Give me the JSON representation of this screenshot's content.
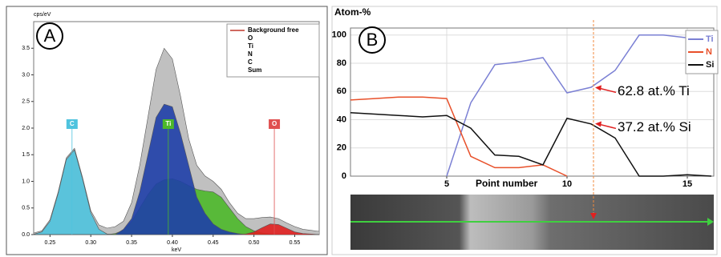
{
  "chart_data": [
    {
      "type": "area",
      "panel": "A",
      "x_label": "keV",
      "y_label": "cps/eV",
      "x": [
        0.23,
        0.24,
        0.25,
        0.26,
        0.27,
        0.28,
        0.29,
        0.3,
        0.31,
        0.32,
        0.33,
        0.34,
        0.35,
        0.36,
        0.37,
        0.38,
        0.39,
        0.4,
        0.41,
        0.42,
        0.43,
        0.44,
        0.45,
        0.46,
        0.47,
        0.48,
        0.49,
        0.5,
        0.51,
        0.52,
        0.53,
        0.54,
        0.55,
        0.56,
        0.57,
        0.58
      ],
      "series": [
        {
          "name": "Background free",
          "color": "#c0392b"
        },
        {
          "name": "O",
          "color": "#e02020",
          "values": [
            0,
            0,
            0,
            0,
            0,
            0,
            0,
            0,
            0,
            0,
            0,
            0,
            0,
            0,
            0,
            0,
            0,
            0,
            0,
            0,
            0,
            0,
            0,
            0,
            0,
            0,
            0.01,
            0.05,
            0.13,
            0.2,
            0.19,
            0.12,
            0.05,
            0.02,
            0.01,
            0
          ]
        },
        {
          "name": "Ti",
          "color": "#1f3fa8",
          "values": [
            0,
            0,
            0,
            0,
            0,
            0,
            0,
            0,
            0,
            0,
            0,
            0.1,
            0.3,
            0.8,
            1.5,
            2.2,
            2.45,
            2.4,
            1.9,
            1.3,
            0.7,
            0.4,
            0.2,
            0.1,
            0.05,
            0.02,
            0,
            0,
            0,
            0,
            0,
            0,
            0,
            0,
            0,
            0
          ]
        },
        {
          "name": "N",
          "color": "#4cb82a",
          "values": [
            0,
            0,
            0,
            0,
            0,
            0,
            0,
            0,
            0,
            0,
            0.02,
            0.08,
            0.25,
            0.5,
            0.75,
            0.95,
            1.03,
            1.05,
            1.0,
            0.92,
            0.85,
            0.82,
            0.8,
            0.7,
            0.5,
            0.3,
            0.15,
            0.07,
            0.03,
            0.01,
            0,
            0,
            0,
            0,
            0,
            0
          ]
        },
        {
          "name": "C",
          "color": "#4fc3de",
          "values": [
            0.006,
            0.049,
            0.25,
            0.77,
            1.41,
            1.59,
            1.04,
            0.41,
            0.1,
            0.01,
            0,
            0,
            0,
            0,
            0,
            0,
            0,
            0,
            0,
            0,
            0,
            0,
            0,
            0,
            0,
            0,
            0,
            0,
            0,
            0,
            0,
            0,
            0,
            0,
            0,
            0
          ]
        },
        {
          "name": "Sum",
          "color": "#b9b9b9",
          "values": [
            0.03,
            0.07,
            0.28,
            0.8,
            1.44,
            1.62,
            1.07,
            0.45,
            0.18,
            0.12,
            0.15,
            0.25,
            0.6,
            1.3,
            2.2,
            3.1,
            3.5,
            3.3,
            2.6,
            1.8,
            1.3,
            1.1,
            1.0,
            0.85,
            0.6,
            0.4,
            0.3,
            0.3,
            0.32,
            0.33,
            0.3,
            0.22,
            0.15,
            0.1,
            0.08,
            0.06
          ]
        }
      ],
      "annotations": [
        {
          "text": "C",
          "x": 0.277,
          "color": "#4fc3de"
        },
        {
          "text": "Ti",
          "x": 0.395,
          "color": "#4cb82a"
        },
        {
          "text": "O",
          "x": 0.525,
          "color": "#e05050"
        }
      ],
      "xlim": [
        0.23,
        0.58
      ],
      "ylim": [
        0,
        4
      ],
      "xticks": [
        0.25,
        {
          "value": 0.3,
          "label": "0.30"
        },
        0.35,
        {
          "value": 0.4,
          "label": "0.40"
        },
        0.45,
        {
          "value": 0.5,
          "label": "0.50"
        },
        0.55
      ],
      "yticks": [
        {
          "value": 0,
          "label": "0.0"
        },
        {
          "value": 0.5,
          "label": "0.5"
        },
        {
          "value": 1,
          "label": "1.0"
        },
        {
          "value": 1.5,
          "label": "1.5"
        },
        {
          "value": 2,
          "label": "2.0"
        },
        {
          "value": 2.5,
          "label": "2.5"
        },
        {
          "value": 3,
          "label": "3.0"
        },
        {
          "value": 3.5,
          "label": "3.5"
        }
      ],
      "grid": false,
      "legend": "top-right"
    },
    {
      "type": "line",
      "panel": "B",
      "x_label": "Point number",
      "y_label": "Atom-%",
      "x": [
        1,
        2,
        3,
        4,
        5,
        6,
        7,
        8,
        9,
        10,
        11,
        12,
        13,
        14,
        15,
        16
      ],
      "series": [
        {
          "name": "Ti",
          "color": "#7b80d4",
          "values": [
            null,
            null,
            null,
            null,
            0,
            52,
            79,
            81,
            84,
            59,
            63,
            75,
            100,
            100,
            98,
            98
          ]
        },
        {
          "name": "N",
          "color": "#e8502a",
          "values": [
            54,
            55,
            56,
            56,
            55,
            14,
            6,
            6,
            8,
            0,
            null,
            null,
            null,
            null,
            null,
            null
          ]
        },
        {
          "name": "Si",
          "color": "#111111",
          "values": [
            45,
            44,
            43,
            42,
            43,
            34,
            15,
            14,
            8,
            41,
            37,
            27,
            0,
            0,
            1,
            0
          ]
        }
      ],
      "marker_x": 11.1,
      "annotations": [
        {
          "text": "62.8 at.% Ti",
          "y": 62.8
        },
        {
          "text": "37.2 at.% Si",
          "y": 37.2
        }
      ],
      "xlim": [
        1,
        16.1
      ],
      "ylim": [
        0,
        105
      ],
      "xticks": [
        5,
        10,
        15
      ],
      "yticks": [
        0,
        20,
        40,
        60,
        80,
        100
      ],
      "grid": true,
      "legend": "top-right"
    }
  ]
}
